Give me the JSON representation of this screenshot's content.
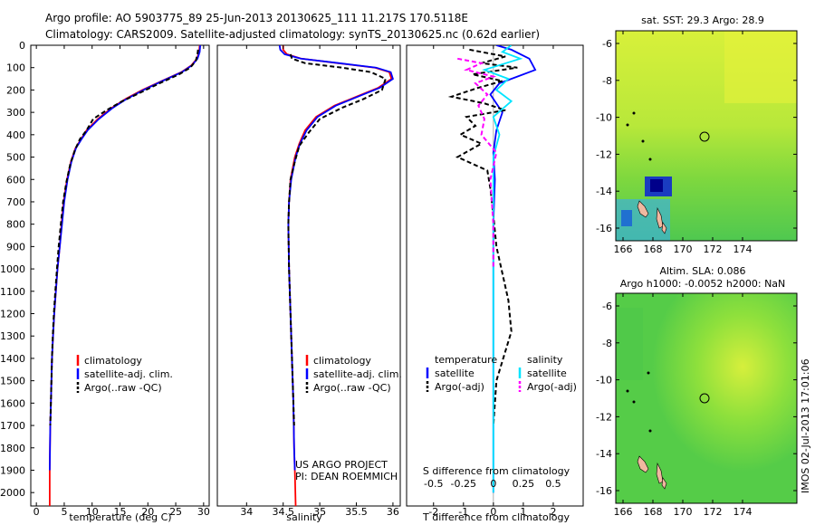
{
  "header": {
    "line1": "Argo profile: AO 5903775_89 25-Jun-2013 20130625_111 11.217S 170.5118E",
    "line2": "Climatology: CARS2009. Satellite-adjusted climatology: synTS_20130625.nc (0.62d earlier)"
  },
  "depth_axis": {
    "ticks": [
      0,
      100,
      200,
      300,
      400,
      500,
      600,
      700,
      800,
      900,
      1000,
      1100,
      1200,
      1300,
      1400,
      1500,
      1600,
      1700,
      1800,
      1900,
      2000
    ],
    "range": [
      0,
      2060
    ]
  },
  "colors": {
    "climatology": "#ff0000",
    "satellite": "#0000ff",
    "argo": "#000000",
    "sal_satellite": "#00e5ff",
    "sal_argo": "#ff00ff"
  },
  "chart_data": [
    {
      "type": "line",
      "id": "temperature",
      "xlabel": "temperature (deg C)",
      "xlim": [
        -1,
        31
      ],
      "xticks": [
        0,
        5,
        10,
        15,
        20,
        25,
        30
      ],
      "series": [
        {
          "name": "climatology",
          "color": "#ff0000",
          "x": [
            29.3,
            29.2,
            28.8,
            27.8,
            26,
            22.5,
            19,
            16,
            13.5,
            11,
            9,
            8,
            7,
            6.2,
            5.5,
            4.9,
            4.5,
            4.2,
            3.8,
            3.5,
            3.2,
            3.0,
            2.8,
            2.7,
            2.6,
            2.5,
            2.45,
            2.4,
            2.4
          ],
          "y": [
            0,
            30,
            60,
            90,
            120,
            160,
            200,
            240,
            280,
            330,
            380,
            420,
            460,
            520,
            600,
            700,
            800,
            900,
            1000,
            1100,
            1200,
            1300,
            1400,
            1500,
            1600,
            1700,
            1800,
            1900,
            2060
          ]
        },
        {
          "name": "satellite-adj. clim.",
          "color": "#0000ff",
          "x": [
            29.4,
            29.3,
            28.9,
            27.9,
            26.1,
            22.6,
            19.2,
            16.2,
            13.7,
            11.2,
            9.2,
            8.1,
            7.1,
            6.3,
            5.6,
            5.0,
            4.6,
            4.2,
            3.8,
            3.5,
            3.2,
            3.0,
            2.8,
            2.7,
            2.6,
            2.5,
            2.45,
            2.4
          ],
          "y": [
            0,
            30,
            60,
            90,
            120,
            160,
            200,
            240,
            280,
            330,
            380,
            420,
            460,
            520,
            600,
            700,
            800,
            900,
            1000,
            1100,
            1200,
            1300,
            1400,
            1500,
            1600,
            1700,
            1800,
            1900
          ]
        },
        {
          "name": "Argo(..raw -QC)",
          "color": "#000000",
          "x": [
            29.0,
            28.9,
            28.6,
            27.6,
            25.6,
            22.1,
            18.8,
            15.4,
            12.6,
            10.2,
            9.0,
            7.8,
            6.9,
            6.1,
            5.4,
            4.8,
            4.4,
            4.0,
            3.7,
            3.4,
            3.15,
            2.95,
            2.8,
            2.7,
            2.6,
            2.5
          ],
          "y": [
            20,
            40,
            70,
            100,
            130,
            170,
            210,
            250,
            290,
            330,
            380,
            420,
            470,
            530,
            610,
            700,
            800,
            900,
            1000,
            1100,
            1200,
            1300,
            1400,
            1500,
            1600,
            1700
          ]
        }
      ],
      "legend": [
        "climatology",
        "satellite-adj. clim.",
        "Argo(..raw -QC)"
      ]
    },
    {
      "type": "line",
      "id": "salinity",
      "xlabel": "salinity",
      "xlim": [
        33.6,
        36.1
      ],
      "xticks": [
        34,
        34.5,
        35,
        35.5,
        36
      ],
      "series": [
        {
          "name": "climatology",
          "color": "#ff0000",
          "x": [
            34.5,
            34.5,
            34.55,
            34.75,
            35.25,
            35.75,
            35.95,
            35.98,
            35.8,
            35.5,
            35.2,
            34.95,
            34.8,
            34.72,
            34.66,
            34.6,
            34.58,
            34.57,
            34.58,
            34.6,
            34.62,
            34.64,
            34.65,
            34.66,
            34.67
          ],
          "y": [
            0,
            20,
            40,
            60,
            80,
            100,
            120,
            150,
            190,
            230,
            270,
            320,
            380,
            440,
            500,
            600,
            700,
            800,
            1000,
            1200,
            1400,
            1600,
            1800,
            1900,
            2060
          ]
        },
        {
          "name": "satellite-adj. clim.",
          "color": "#0000ff",
          "x": [
            34.45,
            34.46,
            34.52,
            34.74,
            35.27,
            35.77,
            35.97,
            36.0,
            35.82,
            35.52,
            35.22,
            34.97,
            34.82,
            34.73,
            34.67,
            34.61,
            34.58,
            34.57,
            34.58,
            34.6,
            34.62,
            34.64,
            34.65,
            34.66
          ],
          "y": [
            0,
            20,
            40,
            60,
            80,
            100,
            120,
            150,
            190,
            230,
            270,
            320,
            380,
            440,
            500,
            600,
            700,
            800,
            1000,
            1200,
            1400,
            1600,
            1800,
            1900
          ]
        },
        {
          "name": "Argo(..raw -QC)",
          "color": "#000000",
          "x": [
            34.6,
            34.62,
            34.8,
            35.3,
            35.7,
            35.9,
            35.85,
            35.6,
            35.3,
            35.0,
            34.85,
            34.72,
            34.66,
            34.6,
            34.58,
            34.57,
            34.58,
            34.6,
            34.62,
            34.64,
            34.65
          ],
          "y": [
            40,
            60,
            80,
            100,
            120,
            150,
            200,
            240,
            280,
            330,
            390,
            450,
            520,
            600,
            700,
            800,
            1000,
            1200,
            1400,
            1600,
            1700
          ]
        }
      ],
      "legend": [
        "climatology",
        "satellite-adj. clim.",
        "Argo(..raw -QC)"
      ],
      "annotation": [
        "US ARGO PROJECT",
        "PI: DEAN ROEMMICH"
      ]
    },
    {
      "type": "line",
      "id": "difference",
      "xlabel": "T difference from climatology",
      "xlabel_top": "S difference from climatology",
      "xlim": [
        -2.9,
        3.0
      ],
      "xticks": [
        -2,
        -1,
        0,
        1,
        2
      ],
      "xticks_top": [
        "-0.5",
        "-0.25",
        "0",
        "0.25",
        "0.5"
      ],
      "xticks_top_pos": [
        -2,
        -1,
        0,
        1,
        2
      ],
      "series": [
        {
          "name": "T satellite",
          "color": "#0000ff",
          "x": [
            0.1,
            0.6,
            1.2,
            1.4,
            0.8,
            0.2,
            -0.1,
            0.3,
            0.1,
            0.0,
            0.05,
            0.0,
            0.0,
            0.0,
            0.0
          ],
          "y": [
            0,
            20,
            60,
            110,
            140,
            170,
            220,
            300,
            380,
            480,
            600,
            800,
            1200,
            1600,
            2000
          ]
        },
        {
          "name": "T Argo(-adj)",
          "color": "#000000",
          "x": [
            -0.8,
            0.4,
            -0.4,
            0.8,
            -0.7,
            0.3,
            -0.5,
            -1.4,
            -0.3,
            0.4,
            -0.9,
            -0.6,
            -1.1,
            -0.4,
            -1.2,
            -0.2,
            -0.1,
            0.0,
            0.1,
            0.5,
            0.6,
            0.1,
            0.0
          ],
          "y": [
            20,
            50,
            80,
            100,
            130,
            160,
            190,
            230,
            260,
            290,
            320,
            360,
            400,
            440,
            500,
            560,
            640,
            760,
            900,
            1140,
            1280,
            1500,
            1700
          ]
        },
        {
          "name": "S satellite",
          "color": "#00e5ff",
          "x": [
            0.6,
            0.3,
            0.9,
            -0.3,
            0.5,
            0.1,
            0.6,
            0.0,
            0.2,
            0.0,
            0.0,
            0.0,
            0.0,
            0.0
          ],
          "y": [
            0,
            30,
            60,
            110,
            150,
            200,
            250,
            320,
            400,
            500,
            700,
            1100,
            1500,
            2000
          ]
        },
        {
          "name": "S Argo(-adj)",
          "color": "#ff00ff",
          "x": [
            -1.2,
            -0.4,
            -0.9,
            0.0,
            -0.6,
            -0.2,
            -0.5,
            -0.3,
            -0.4,
            0.1,
            -0.1,
            0.0,
            0.0
          ],
          "y": [
            60,
            80,
            110,
            140,
            170,
            220,
            270,
            330,
            400,
            480,
            600,
            800,
            1000
          ]
        }
      ],
      "legend_headers": [
        "temperature",
        "salinity"
      ],
      "legend": [
        "satellite",
        "Argo(-adj)",
        "satellite",
        "Argo(-adj)"
      ]
    }
  ],
  "maps": [
    {
      "title": "sat. SST: 29.3  Argo: 28.9",
      "title2": "",
      "xticks": [
        "166",
        "168",
        "170",
        "172",
        "174"
      ],
      "yticks": [
        "-6",
        "-8",
        "-10",
        "-12",
        "-14",
        "-16"
      ]
    },
    {
      "title": "Altim. SLA: 0.086",
      "title2": "Argo h1000: -0.0052  h2000: NaN",
      "xticks": [
        "166",
        "168",
        "170",
        "172",
        "174"
      ],
      "yticks": [
        "-6",
        "-8",
        "-10",
        "-12",
        "-14",
        "-16"
      ]
    }
  ],
  "footer": {
    "stamp": "IMOS 02-Jul-2013 17:01:06"
  }
}
